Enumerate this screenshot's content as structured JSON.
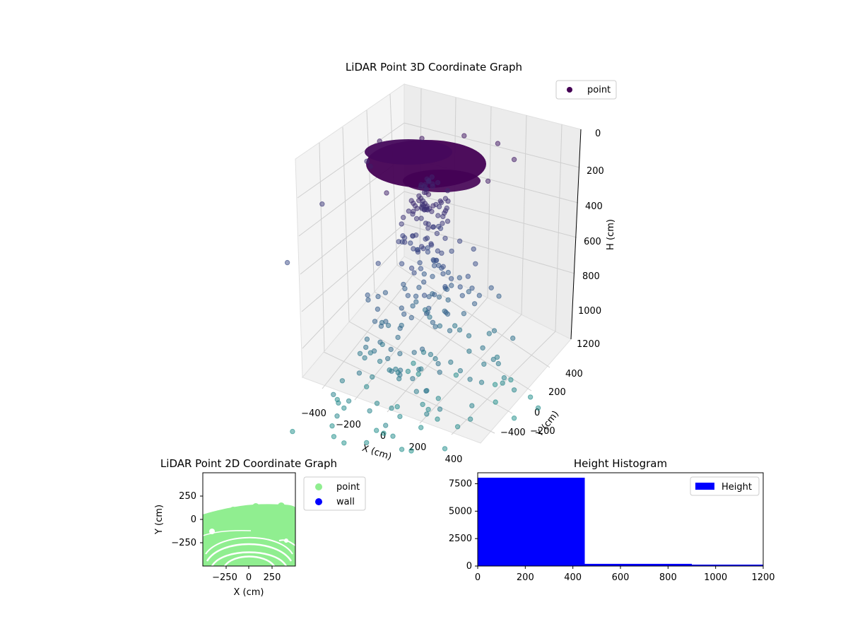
{
  "chart_data": [
    {
      "type": "scatter",
      "projection": "3d",
      "title": "LiDAR Point 3D Coordinate Graph",
      "xlabel": "X (cm)",
      "ylabel": "Y (cm)",
      "zlabel": "H (cm)",
      "xlim": [
        -500,
        500
      ],
      "ylim": [
        -500,
        500
      ],
      "zlim": [
        1200,
        0
      ],
      "z_axis_inverted": true,
      "x_ticks": [
        "−400",
        "−200",
        "0",
        "200",
        "400"
      ],
      "y_ticks": [
        "−400",
        "−200",
        "0",
        "200",
        "400"
      ],
      "z_ticks": [
        "0",
        "200",
        "400",
        "600",
        "800",
        "1000",
        "1200"
      ],
      "grid": true,
      "colormap": "viridis (by height)",
      "legend": {
        "placement": "top-right",
        "entries": [
          {
            "label": "point",
            "color": "#440154"
          }
        ]
      },
      "series": [
        {
          "name": "point",
          "description_of_distribution": "dense disc-shaped cluster near H≈150–250 cm spanning X/Y ≈ −400..400; sparse column of points extending down to H≈1200 cm",
          "sample_points": [
            {
              "x": -300,
              "y": 0,
              "h": 180
            },
            {
              "x": -150,
              "y": 100,
              "h": 170
            },
            {
              "x": 0,
              "y": 200,
              "h": 160
            },
            {
              "x": 150,
              "y": 250,
              "h": 175
            },
            {
              "x": 300,
              "y": 200,
              "h": 190
            },
            {
              "x": 350,
              "y": 0,
              "h": 200
            },
            {
              "x": 200,
              "y": -200,
              "h": 220
            },
            {
              "x": 0,
              "y": -250,
              "h": 240
            },
            {
              "x": -200,
              "y": -150,
              "h": 210
            },
            {
              "x": -480,
              "y": 100,
              "h": 330
            },
            {
              "x": -490,
              "y": -150,
              "h": 420
            },
            {
              "x": -440,
              "y": -400,
              "h": 560
            },
            {
              "x": 50,
              "y": 0,
              "h": 400
            },
            {
              "x": 80,
              "y": 50,
              "h": 550
            },
            {
              "x": 60,
              "y": -30,
              "h": 700
            },
            {
              "x": 100,
              "y": 20,
              "h": 850
            },
            {
              "x": 0,
              "y": -50,
              "h": 1000
            },
            {
              "x": 150,
              "y": -100,
              "h": 1150
            },
            {
              "x": 200,
              "y": -300,
              "h": 1200
            },
            {
              "x": -100,
              "y": -400,
              "h": 1200
            },
            {
              "x": 300,
              "y": 200,
              "h": 1100
            }
          ]
        }
      ]
    },
    {
      "type": "scatter",
      "title": "LiDAR Point 2D Coordinate Graph",
      "xlabel": "X (cm)",
      "ylabel": "Y (cm)",
      "xlim": [
        -500,
        500
      ],
      "ylim": [
        -500,
        500
      ],
      "x_ticks": [
        "−250",
        "0",
        "250"
      ],
      "y_ticks": [
        "250",
        "0",
        "−250"
      ],
      "grid": false,
      "legend": {
        "placement": "outside right",
        "entries": [
          {
            "label": "point",
            "color": "#90ee90"
          },
          {
            "label": "wall",
            "color": "#0000ff"
          }
        ]
      },
      "series": [
        {
          "name": "point",
          "color": "#90ee90",
          "description_of_distribution": "dense green cloud filling most of the plot below Y≈130 cm, with white concentric arc gaps in the lower half"
        },
        {
          "name": "wall",
          "color": "#0000ff",
          "values": []
        }
      ]
    },
    {
      "type": "bar",
      "subtype": "histogram",
      "title": "Height Histogram",
      "xlim": [
        0,
        1200
      ],
      "ylim": [
        0,
        8500
      ],
      "x_ticks": [
        "0",
        "200",
        "400",
        "600",
        "800",
        "1000",
        "1200"
      ],
      "y_ticks": [
        "0",
        "2500",
        "5000",
        "7500"
      ],
      "legend": {
        "placement": "top-right",
        "entries": [
          {
            "label": "Height",
            "color": "#0000ff"
          }
        ]
      },
      "bins": [
        {
          "from": 0,
          "to": 450,
          "count": 8050
        },
        {
          "from": 450,
          "to": 900,
          "count": 200
        },
        {
          "from": 900,
          "to": 1200,
          "count": 130
        }
      ],
      "color": "#0000ff"
    }
  ]
}
